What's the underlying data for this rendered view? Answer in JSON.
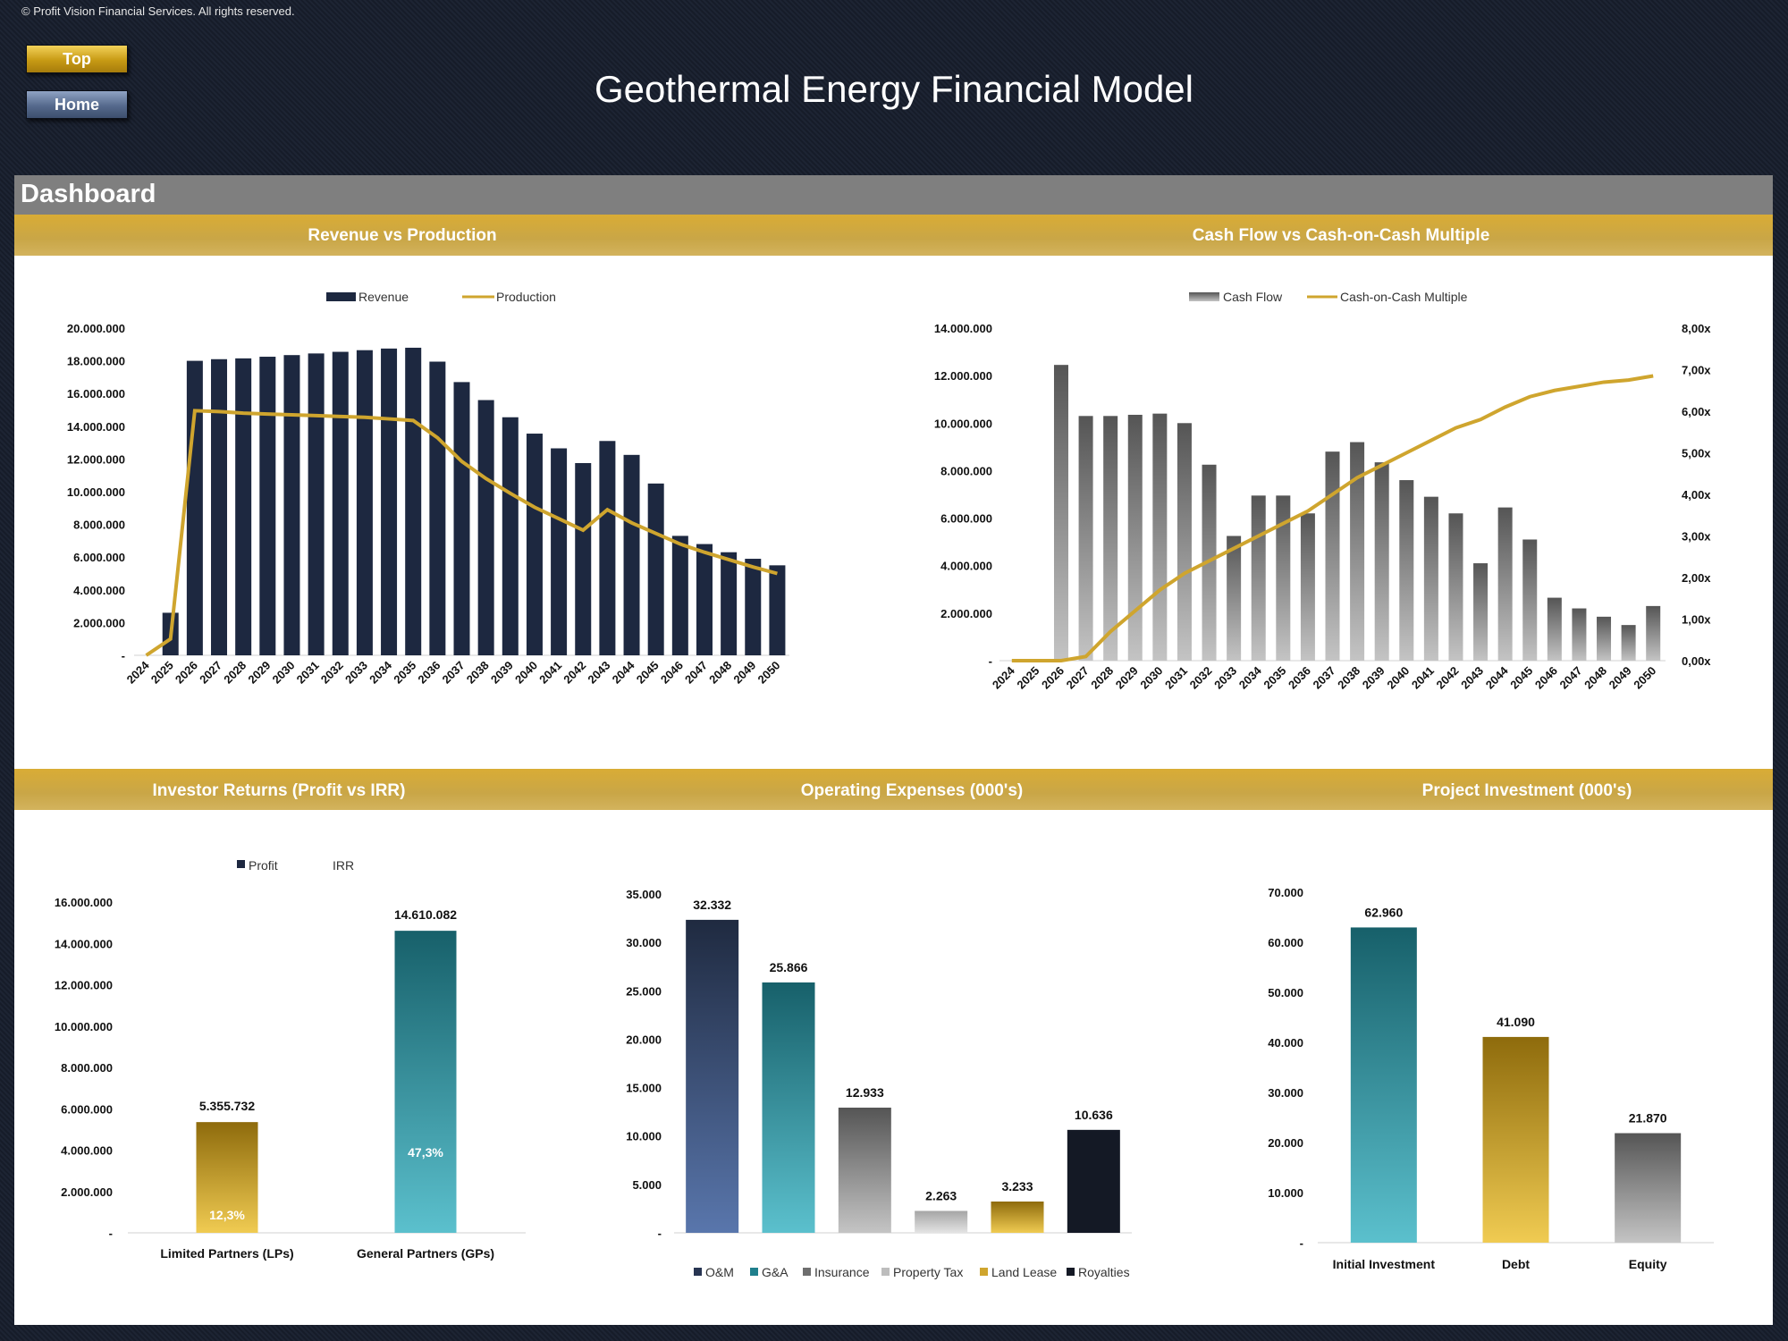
{
  "copyright": "© Profit Vision Financial Services. All rights reserved.",
  "buttons": {
    "top": "Top",
    "home": "Home"
  },
  "title": "Geothermal Energy Financial Model",
  "dashboard_label": "Dashboard",
  "sections": {
    "revenue": "Revenue vs Production",
    "cashflow": "Cash Flow vs Cash-on-Cash Multiple",
    "investor": "Investor Returns (Profit vs IRR)",
    "opex": "Operating Expenses (000's)",
    "investment": "Project Investment (000's)"
  },
  "colors": {
    "gold": "#cfa52e",
    "navy": "#1d2840",
    "teal": "#1f7f8c",
    "grey": "#6e6e6e"
  },
  "chart_data": [
    {
      "id": "revenue",
      "type": "bar",
      "title": "Revenue vs Production",
      "categories": [
        "2024",
        "2025",
        "2026",
        "2027",
        "2028",
        "2029",
        "2030",
        "2031",
        "2032",
        "2033",
        "2034",
        "2035",
        "2036",
        "2037",
        "2038",
        "2039",
        "2040",
        "2041",
        "2042",
        "2043",
        "2044",
        "2045",
        "2046",
        "2047",
        "2048",
        "2049",
        "2050"
      ],
      "series": [
        {
          "name": "Revenue",
          "kind": "bar",
          "color": "#1d2840",
          "values": [
            0,
            2600000,
            18000000,
            18100000,
            18150000,
            18250000,
            18350000,
            18450000,
            18550000,
            18650000,
            18750000,
            18800000,
            17950000,
            16700000,
            15600000,
            14550000,
            13550000,
            12650000,
            11750000,
            13100000,
            12250000,
            10500000,
            7300000,
            6800000,
            6300000,
            5900000,
            5500000
          ]
        },
        {
          "name": "Production",
          "kind": "line",
          "color": "#cfa52e",
          "values": [
            0,
            1000000,
            14950000,
            14900000,
            14800000,
            14750000,
            14700000,
            14650000,
            14600000,
            14550000,
            14450000,
            14350000,
            13300000,
            11850000,
            10800000,
            9900000,
            9050000,
            8350000,
            7650000,
            8900000,
            8100000,
            7450000,
            6800000,
            6300000,
            5850000,
            5400000,
            5000000
          ]
        }
      ],
      "ylim": [
        0,
        20000000
      ],
      "yticks": [
        "-",
        "2.000.000",
        "4.000.000",
        "6.000.000",
        "8.000.000",
        "10.000.000",
        "12.000.000",
        "14.000.000",
        "16.000.000",
        "18.000.000",
        "20.000.000"
      ],
      "legend": "top"
    },
    {
      "id": "cashflow",
      "type": "bar",
      "title": "Cash Flow vs Cash-on-Cash Multiple",
      "categories": [
        "2024",
        "2025",
        "2026",
        "2027",
        "2028",
        "2029",
        "2030",
        "2031",
        "2032",
        "2033",
        "2034",
        "2035",
        "2036",
        "2037",
        "2038",
        "2039",
        "2040",
        "2041",
        "2042",
        "2043",
        "2044",
        "2045",
        "2046",
        "2047",
        "2048",
        "2049",
        "2050"
      ],
      "series": [
        {
          "name": "Cash Flow",
          "kind": "bar",
          "color": "#6e6e6e",
          "values": [
            0,
            0,
            12450000,
            10300000,
            10300000,
            10350000,
            10400000,
            10000000,
            8250000,
            5250000,
            6950000,
            6950000,
            6200000,
            8800000,
            9200000,
            8350000,
            7600000,
            6900000,
            6200000,
            4100000,
            6450000,
            5100000,
            2650000,
            2200000,
            1850000,
            1500000,
            2300000
          ]
        },
        {
          "name": "Cash-on-Cash Multiple",
          "kind": "line",
          "axis": "right",
          "color": "#cfa52e",
          "values": [
            0,
            0,
            0,
            0.1,
            0.7,
            1.2,
            1.7,
            2.1,
            2.4,
            2.7,
            3.0,
            3.3,
            3.6,
            4.0,
            4.4,
            4.7,
            5.0,
            5.3,
            5.6,
            5.8,
            6.1,
            6.35,
            6.5,
            6.6,
            6.7,
            6.75,
            6.85
          ]
        }
      ],
      "ylim": [
        0,
        14000000
      ],
      "yticks": [
        "-",
        "2.000.000",
        "4.000.000",
        "6.000.000",
        "8.000.000",
        "10.000.000",
        "12.000.000",
        "14.000.000"
      ],
      "y2lim": [
        0,
        8
      ],
      "y2ticks": [
        "0,00x",
        "1,00x",
        "2,00x",
        "3,00x",
        "4,00x",
        "5,00x",
        "6,00x",
        "7,00x",
        "8,00x"
      ],
      "legend": "top"
    },
    {
      "id": "investor",
      "type": "bar",
      "title": "Investor Returns (Profit vs IRR)",
      "categories": [
        "Limited Partners (LPs)",
        "General Partners (GPs)"
      ],
      "series": [
        {
          "name": "Profit",
          "values": [
            5355732,
            14610082
          ],
          "labels": [
            "5.355.732",
            "14.610.082"
          ]
        },
        {
          "name": "IRR",
          "values": [
            12.3,
            47.3
          ],
          "labels": [
            "12,3%",
            "47,3%"
          ]
        }
      ],
      "ylim": [
        0,
        16000000
      ],
      "yticks": [
        "-",
        "2.000.000",
        "4.000.000",
        "6.000.000",
        "8.000.000",
        "10.000.000",
        "12.000.000",
        "14.000.000",
        "16.000.000"
      ],
      "legend": "top"
    },
    {
      "id": "opex",
      "type": "bar",
      "title": "Operating Expenses (000's)",
      "categories": [
        "O&M",
        "G&A",
        "Insurance",
        "Property Tax",
        "Land Lease",
        "Royalties"
      ],
      "values": [
        32332,
        25866,
        12933,
        2263,
        3233,
        10636
      ],
      "labels": [
        "32.332",
        "25.866",
        "12.933",
        "2.263",
        "3.233",
        "10.636"
      ],
      "ylim": [
        0,
        35000
      ],
      "yticks": [
        "-",
        "5.000",
        "10.000",
        "15.000",
        "20.000",
        "25.000",
        "30.000",
        "35.000"
      ],
      "legend": "bottom"
    },
    {
      "id": "investment",
      "type": "bar",
      "title": "Project Investment (000's)",
      "categories": [
        "Initial Investment",
        "Debt",
        "Equity"
      ],
      "values": [
        62960,
        41090,
        21870
      ],
      "labels": [
        "62.960",
        "41.090",
        "21.870"
      ],
      "ylim": [
        0,
        70000
      ],
      "yticks": [
        "-",
        "10.000",
        "20.000",
        "30.000",
        "40.000",
        "50.000",
        "60.000",
        "70.000"
      ]
    }
  ]
}
